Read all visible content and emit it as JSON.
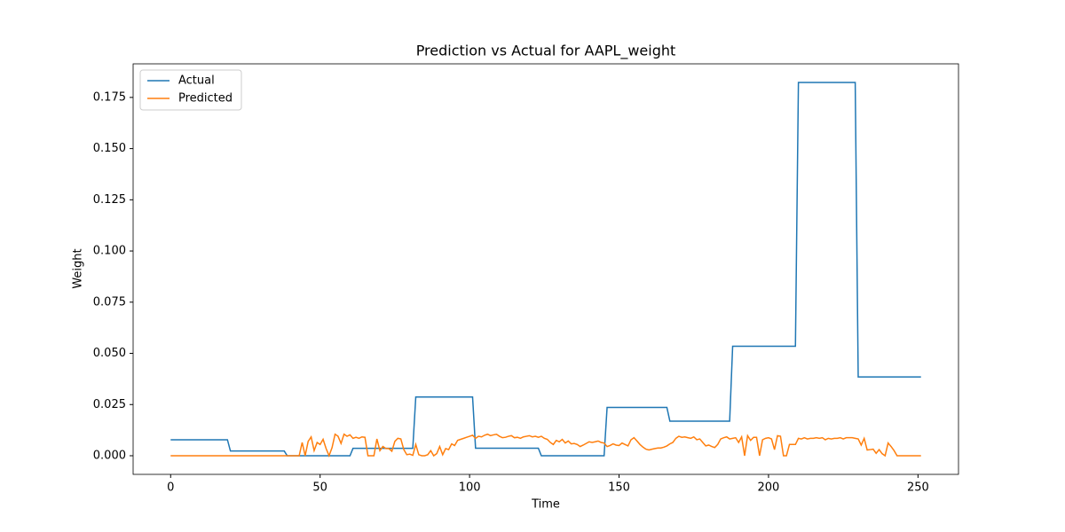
{
  "chart_data": {
    "type": "line",
    "title": "Prediction vs Actual for AAPL_weight",
    "x_label": "Time",
    "y_label": "Weight",
    "x": [
      0,
      1,
      2,
      3,
      4,
      5,
      6,
      7,
      8,
      9,
      10,
      11,
      12,
      13,
      14,
      15,
      16,
      17,
      18,
      19,
      20,
      21,
      22,
      23,
      24,
      25,
      26,
      27,
      28,
      29,
      30,
      31,
      32,
      33,
      34,
      35,
      36,
      37,
      38,
      39,
      40,
      41,
      42,
      43,
      44,
      45,
      46,
      47,
      48,
      49,
      50,
      51,
      52,
      53,
      54,
      55,
      56,
      57,
      58,
      59,
      60,
      61,
      62,
      63,
      64,
      65,
      66,
      67,
      68,
      69,
      70,
      71,
      72,
      73,
      74,
      75,
      76,
      77,
      78,
      79,
      80,
      81,
      82,
      83,
      84,
      85,
      86,
      87,
      88,
      89,
      90,
      91,
      92,
      93,
      94,
      95,
      96,
      97,
      98,
      99,
      100,
      101,
      102,
      103,
      104,
      105,
      106,
      107,
      108,
      109,
      110,
      111,
      112,
      113,
      114,
      115,
      116,
      117,
      118,
      119,
      120,
      121,
      122,
      123,
      124,
      125,
      126,
      127,
      128,
      129,
      130,
      131,
      132,
      133,
      134,
      135,
      136,
      137,
      138,
      139,
      140,
      141,
      142,
      143,
      144,
      145,
      146,
      147,
      148,
      149,
      150,
      151,
      152,
      153,
      154,
      155,
      156,
      157,
      158,
      159,
      160,
      161,
      162,
      163,
      164,
      165,
      166,
      167,
      168,
      169,
      170,
      171,
      172,
      173,
      174,
      175,
      176,
      177,
      178,
      179,
      180,
      181,
      182,
      183,
      184,
      185,
      186,
      187,
      188,
      189,
      190,
      191,
      192,
      193,
      194,
      195,
      196,
      197,
      198,
      199,
      200,
      201,
      202,
      203,
      204,
      205,
      206,
      207,
      208,
      209,
      210,
      211,
      212,
      213,
      214,
      215,
      216,
      217,
      218,
      219,
      220,
      221,
      222,
      223,
      224,
      225,
      226,
      227,
      228,
      229,
      230,
      231,
      232,
      233,
      234,
      235,
      236,
      237,
      238,
      239,
      240,
      241,
      242,
      243,
      244,
      245,
      246,
      247,
      248,
      249,
      250,
      251
    ],
    "series": [
      {
        "name": "Actual",
        "color": "#1f77b4",
        "values": [
          0.0078,
          0.0078,
          0.0078,
          0.0078,
          0.0078,
          0.0078,
          0.0078,
          0.0078,
          0.0078,
          0.0078,
          0.0078,
          0.0078,
          0.0078,
          0.0078,
          0.0078,
          0.0078,
          0.0078,
          0.0078,
          0.0078,
          0.0078,
          0.0023,
          0.0023,
          0.0023,
          0.0023,
          0.0023,
          0.0023,
          0.0023,
          0.0023,
          0.0023,
          0.0023,
          0.0023,
          0.0023,
          0.0023,
          0.0023,
          0.0023,
          0.0023,
          0.0023,
          0.0023,
          0.0023,
          0,
          0,
          0,
          0,
          0,
          0,
          0,
          0,
          0,
          0,
          0,
          0,
          0,
          0,
          0,
          0,
          0,
          0,
          0,
          0,
          0,
          0,
          0.0036,
          0.0036,
          0.0036,
          0.0036,
          0.0036,
          0.0036,
          0.0036,
          0.0036,
          0.0036,
          0.0036,
          0.0036,
          0.0036,
          0.0036,
          0.0036,
          0.0036,
          0.0036,
          0.0036,
          0.0036,
          0.0036,
          0.0036,
          0.0036,
          0.0287,
          0.0287,
          0.0287,
          0.0287,
          0.0287,
          0.0287,
          0.0287,
          0.0287,
          0.0287,
          0.0287,
          0.0287,
          0.0287,
          0.0287,
          0.0287,
          0.0287,
          0.0287,
          0.0287,
          0.0287,
          0.0287,
          0.0287,
          0.0037,
          0.0037,
          0.0037,
          0.0037,
          0.0037,
          0.0037,
          0.0037,
          0.0037,
          0.0037,
          0.0037,
          0.0037,
          0.0037,
          0.0037,
          0.0037,
          0.0037,
          0.0037,
          0.0037,
          0.0037,
          0.0037,
          0.0037,
          0.0037,
          0.0037,
          0,
          0,
          0,
          0,
          0,
          0,
          0,
          0,
          0,
          0,
          0,
          0,
          0,
          0,
          0,
          0,
          0,
          0,
          0,
          0,
          0,
          0,
          0.0236,
          0.0236,
          0.0236,
          0.0236,
          0.0236,
          0.0236,
          0.0236,
          0.0236,
          0.0236,
          0.0236,
          0.0236,
          0.0236,
          0.0236,
          0.0236,
          0.0236,
          0.0236,
          0.0236,
          0.0236,
          0.0236,
          0.0236,
          0.0236,
          0.0169,
          0.0169,
          0.0169,
          0.0169,
          0.0169,
          0.0169,
          0.0169,
          0.0169,
          0.0169,
          0.0169,
          0.0169,
          0.0169,
          0.0169,
          0.0169,
          0.0169,
          0.0169,
          0.0169,
          0.0169,
          0.0169,
          0.0169,
          0.0169,
          0.0535,
          0.0535,
          0.0535,
          0.0535,
          0.0535,
          0.0535,
          0.0535,
          0.0535,
          0.0535,
          0.0535,
          0.0535,
          0.0535,
          0.0535,
          0.0535,
          0.0535,
          0.0535,
          0.0535,
          0.0535,
          0.0535,
          0.0535,
          0.0535,
          0.0535,
          0.1823,
          0.1823,
          0.1823,
          0.1823,
          0.1823,
          0.1823,
          0.1823,
          0.1823,
          0.1823,
          0.1823,
          0.1823,
          0.1823,
          0.1823,
          0.1823,
          0.1823,
          0.1823,
          0.1823,
          0.1823,
          0.1823,
          0.1823,
          0.0385,
          0.0385,
          0.0385,
          0.0385,
          0.0385,
          0.0385,
          0.0385,
          0.0385,
          0.0385,
          0.0385,
          0.0385,
          0.0385,
          0.0385,
          0.0385,
          0.0385,
          0.0385,
          0.0385,
          0.0385,
          0.0385,
          0.0385,
          0.0385,
          0.0385
        ]
      },
      {
        "name": "Predicted",
        "color": "#ff7f0e",
        "values": [
          0,
          0,
          0,
          0,
          0,
          0,
          0,
          0,
          0,
          0,
          0,
          0,
          0,
          0,
          0,
          0,
          0,
          0,
          0,
          0,
          0,
          0,
          0,
          0,
          0,
          0,
          0,
          0,
          0,
          0,
          0,
          0,
          0,
          0,
          0,
          0,
          0,
          0,
          0,
          0,
          0,
          0,
          0,
          0,
          0.0065,
          0,
          0.007,
          0.0092,
          0.0025,
          0.0065,
          0.0055,
          0.008,
          0.0035,
          0,
          0.004,
          0.0105,
          0.0095,
          0.006,
          0.0105,
          0.0095,
          0.0102,
          0.0085,
          0.009,
          0.0085,
          0.0092,
          0.009,
          0,
          0,
          0,
          0.0082,
          0.0025,
          0.0045,
          0.0035,
          0.0035,
          0.0022,
          0.007,
          0.0085,
          0.0082,
          0.003,
          0.0005,
          0.0008,
          0.0002,
          0.0055,
          0.0005,
          0,
          0,
          0.0005,
          0.0025,
          0,
          0.001,
          0.0045,
          0.0005,
          0.0035,
          0.003,
          0.0058,
          0.005,
          0.0075,
          0.008,
          0.0085,
          0.009,
          0.0095,
          0.01,
          0.0085,
          0.0095,
          0.0092,
          0.01,
          0.0105,
          0.0098,
          0.0102,
          0.0105,
          0.0095,
          0.0088,
          0.009,
          0.0095,
          0.0098,
          0.0088,
          0.009,
          0.0085,
          0.0092,
          0.0095,
          0.0098,
          0.0092,
          0.0095,
          0.009,
          0.0095,
          0.0085,
          0.008,
          0.0065,
          0.0055,
          0.0075,
          0.0068,
          0.008,
          0.0062,
          0.0072,
          0.0058,
          0.006,
          0.0055,
          0.0045,
          0.0052,
          0.006,
          0.0068,
          0.0065,
          0.0068,
          0.0072,
          0.0065,
          0.0062,
          0.0045,
          0.005,
          0.0058,
          0.0052,
          0.005,
          0.0062,
          0.0055,
          0.0048,
          0.0078,
          0.0088,
          0.0072,
          0.0055,
          0.0042,
          0.0032,
          0.0028,
          0.0032,
          0.0035,
          0.0038,
          0.0038,
          0.0042,
          0.0048,
          0.0058,
          0.0065,
          0.0085,
          0.0095,
          0.009,
          0.0092,
          0.0088,
          0.0085,
          0.0092,
          0.0078,
          0.0082,
          0.0065,
          0.0048,
          0.0052,
          0.0045,
          0.004,
          0.0055,
          0.0082,
          0.0088,
          0.0092,
          0.0082,
          0.0085,
          0.0088,
          0.0065,
          0.0092,
          0,
          0.0098,
          0.0075,
          0.009,
          0.009,
          0,
          0.0078,
          0.0085,
          0.0088,
          0.0082,
          0.003,
          0.0098,
          0.0095,
          0,
          0,
          0.0055,
          0.0055,
          0.0055,
          0.0085,
          0.0082,
          0.0088,
          0.0082,
          0.0085,
          0.0085,
          0.0088,
          0.0085,
          0.0088,
          0.0078,
          0.0085,
          0.0082,
          0.0085,
          0.0085,
          0.0088,
          0.0082,
          0.0088,
          0.0088,
          0.0088,
          0.0085,
          0.0082,
          0.0052,
          0.0085,
          0.0028,
          0.003,
          0.0032,
          0.0012,
          0.003,
          0.001,
          0,
          0.0062,
          0.0045,
          0.0025,
          0,
          0,
          0,
          0,
          0,
          0,
          0,
          0,
          0
        ]
      }
    ],
    "xlim": [
      -12.55,
      263.55
    ],
    "xticks": [
      0,
      50,
      100,
      150,
      200,
      250
    ],
    "ylim": [
      -0.0091,
      0.1914
    ],
    "yticks": [
      {
        "value": 0,
        "label": "0.000"
      },
      0.025,
      {
        "value": 0.05,
        "label": "0.050"
      },
      0.075,
      {
        "value": 0.1,
        "label": "0.100"
      },
      0.125,
      {
        "value": 0.15,
        "label": "0.150"
      },
      0.175
    ],
    "grid": false,
    "legend": "upper left"
  }
}
